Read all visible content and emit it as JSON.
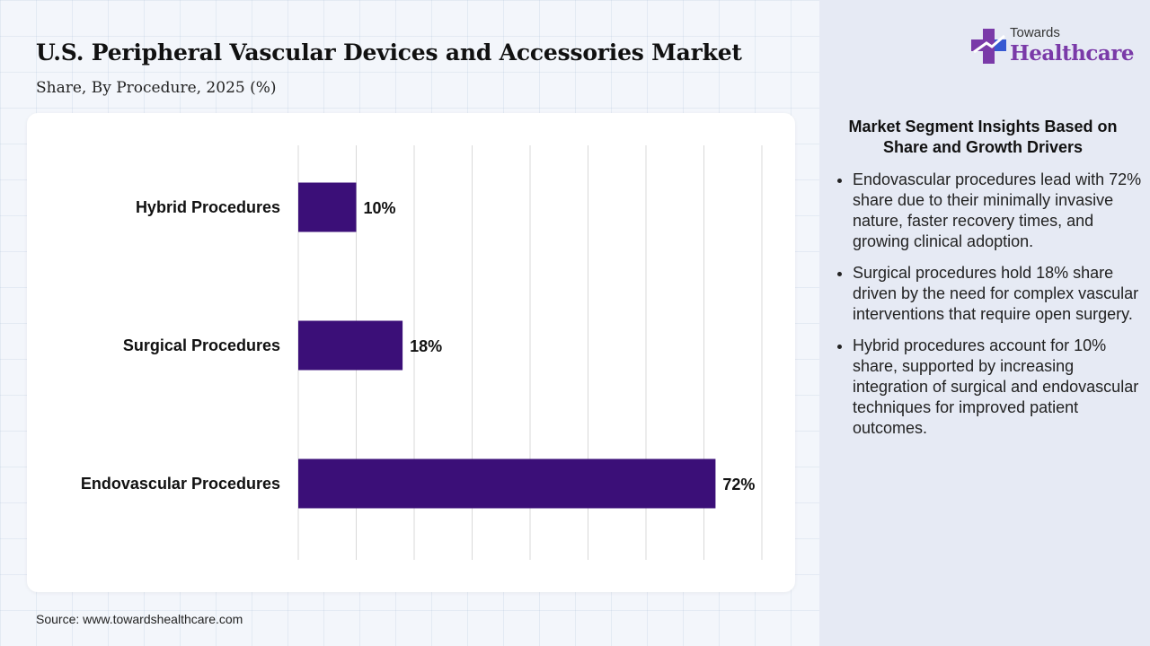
{
  "header": {
    "title": "U.S. Peripheral Vascular Devices and Accessories Market",
    "subtitle": "Share, By Procedure, 2025 (%)"
  },
  "chart_data": {
    "type": "bar",
    "orientation": "horizontal",
    "categories": [
      "Hybrid Procedures",
      "Surgical Procedures",
      "Endovascular Procedures"
    ],
    "values": [
      10,
      18,
      72
    ],
    "value_labels": [
      "10%",
      "18%",
      "72%"
    ],
    "xlim": [
      0,
      80
    ],
    "grid": true,
    "bar_color": "#3b0f78"
  },
  "source": "Source: www.towardshealthcare.com",
  "logo": {
    "small": "Towards",
    "big": "Healthcare"
  },
  "insights": {
    "title": "Market Segment Insights Based on Share and Growth Drivers",
    "bullets": [
      "Endovascular procedures lead with 72% share due to their minimally invasive nature, faster recovery times, and growing clinical adoption.",
      "Surgical procedures hold 18% share driven by the need for complex vascular interventions that require open surgery.",
      "Hybrid procedures account for 10% share, supported by increasing integration of surgical and endovascular techniques for improved patient outcomes."
    ]
  },
  "colors": {
    "accent": "#3b0f78",
    "logo_purple": "#7a3aa8",
    "logo_blue": "#2c5fd9",
    "panel_bg": "#e6eaf4"
  }
}
